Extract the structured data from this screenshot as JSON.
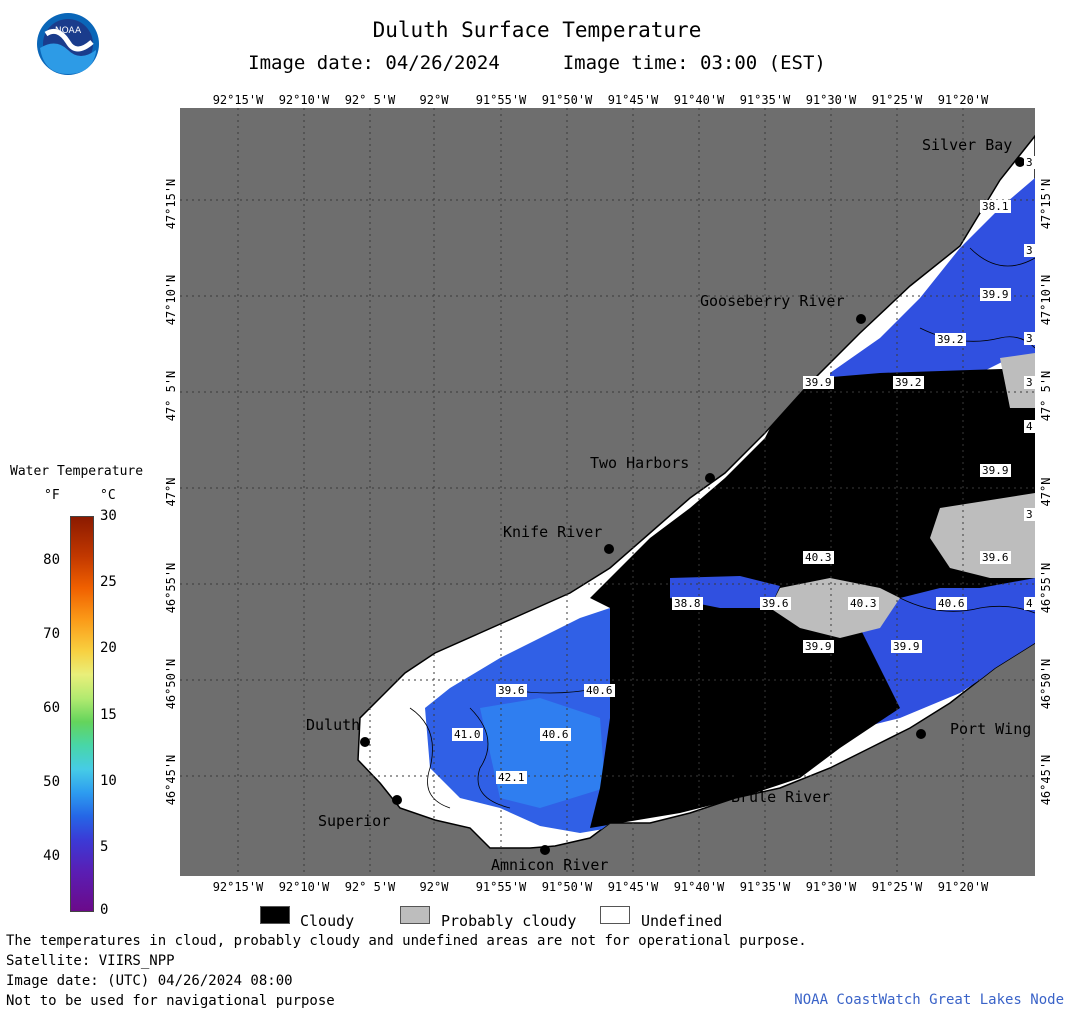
{
  "header": {
    "title": "Duluth Surface Temperature",
    "image_date_label": "Image date: 04/26/2024",
    "image_time_label": "Image time: 03:00 (EST)"
  },
  "logo": {
    "text": "NOAA",
    "icon": "noaa-logo-icon"
  },
  "axes": {
    "longitudes": [
      "92°15'W",
      "92°10'W",
      "92° 5'W",
      "92°W",
      "91°55'W",
      "91°50'W",
      "91°45'W",
      "91°40'W",
      "91°35'W",
      "91°30'W",
      "91°25'W",
      "91°20'W"
    ],
    "latitudes": [
      "47°15'N",
      "47°10'N",
      "47° 5'N",
      "47°N",
      "46°55'N",
      "46°50'N",
      "46°45'N"
    ]
  },
  "places": [
    {
      "name": "Silver Bay"
    },
    {
      "name": "Gooseberry River"
    },
    {
      "name": "Two Harbors"
    },
    {
      "name": "Knife River"
    },
    {
      "name": "Duluth"
    },
    {
      "name": "Superior"
    },
    {
      "name": "Amnicon River"
    },
    {
      "name": "Brule River"
    },
    {
      "name": "Port Wing"
    }
  ],
  "temperature_labels": [
    "38.1",
    "39.9",
    "39.2",
    "39.9",
    "39.2",
    "39.9",
    "40.3",
    "39.6",
    "38.8",
    "39.6",
    "40.3",
    "40.6",
    "39.9",
    "39.9",
    "39.6",
    "40.6",
    "41.0",
    "40.6",
    "42.1"
  ],
  "edge_fragments": [
    "3",
    "3",
    "3",
    "3",
    "4",
    "3",
    "4"
  ],
  "legend": {
    "title": "Water Temperature",
    "unit_f": "°F",
    "unit_c": "°C",
    "ticks_f": [
      "80",
      "70",
      "60",
      "50",
      "40"
    ],
    "ticks_c": [
      "30",
      "25",
      "20",
      "15",
      "10",
      "5",
      "0"
    ],
    "scale_f": [
      32,
      86
    ],
    "scale_c": [
      0,
      30
    ]
  },
  "category_legend": {
    "cloudy": "Cloudy",
    "probably_cloudy": "Probably cloudy",
    "undefined": "Undefined"
  },
  "footer": {
    "note": "The temperatures in cloud, probably cloudy and undefined areas are not for operational purpose.",
    "satellite": "Satellite: VIIRS_NPP",
    "image_date_utc": "Image date: (UTC) 04/26/2024  08:00",
    "nav_warning": "Not to be used for navigational purpose"
  },
  "credit": "NOAA CoastWatch Great Lakes Node",
  "colors": {
    "land": "#6e6e6e",
    "cloudy": "#000000",
    "probably_cloudy": "#bdbdbd",
    "undefined": "#ffffff",
    "water_cold": "#3050e0",
    "water_warm": "#2f7ef0",
    "credit": "#3a63c8"
  }
}
